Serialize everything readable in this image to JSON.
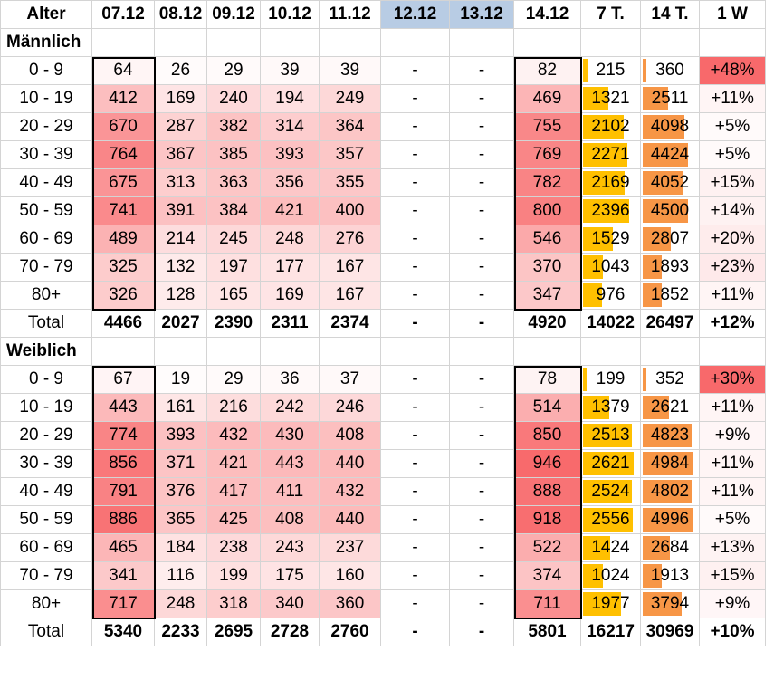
{
  "header": [
    "Alter",
    "07.12",
    "08.12",
    "09.12",
    "10.12",
    "11.12",
    "12.12",
    "13.12",
    "14.12",
    "7 T.",
    "14 T.",
    "1 W"
  ],
  "header_highlight_cols": [
    6,
    7
  ],
  "colors": {
    "heat_low": "#ffffff",
    "heat_high": "#f8696b",
    "bar_7d": "#ffc000",
    "bar_14d": "#f79646",
    "header_highlight": "#b8cce4",
    "change_hot": "#f8696b",
    "grid": "#d4d4d4",
    "frame": "#000000"
  },
  "heat_scale": {
    "min": 0,
    "max": 950
  },
  "bar_scale": {
    "max_7d": 2621,
    "max_14d": 4996
  },
  "sections": [
    {
      "title": "Männlich",
      "rows": [
        {
          "age": "0 - 9",
          "vals": [
            "64",
            "26",
            "29",
            "39",
            "39",
            "-",
            "-",
            "82"
          ],
          "d7": "215",
          "d14": "360",
          "w": "+48%",
          "w_hot": true
        },
        {
          "age": "10 - 19",
          "vals": [
            "412",
            "169",
            "240",
            "194",
            "249",
            "-",
            "-",
            "469"
          ],
          "d7": "1321",
          "d14": "2511",
          "w": "+11%"
        },
        {
          "age": "20 - 29",
          "vals": [
            "670",
            "287",
            "382",
            "314",
            "364",
            "-",
            "-",
            "755"
          ],
          "d7": "2102",
          "d14": "4098",
          "w": "+5%"
        },
        {
          "age": "30 - 39",
          "vals": [
            "764",
            "367",
            "385",
            "393",
            "357",
            "-",
            "-",
            "769"
          ],
          "d7": "2271",
          "d14": "4424",
          "w": "+5%"
        },
        {
          "age": "40 - 49",
          "vals": [
            "675",
            "313",
            "363",
            "356",
            "355",
            "-",
            "-",
            "782"
          ],
          "d7": "2169",
          "d14": "4052",
          "w": "+15%"
        },
        {
          "age": "50 - 59",
          "vals": [
            "741",
            "391",
            "384",
            "421",
            "400",
            "-",
            "-",
            "800"
          ],
          "d7": "2396",
          "d14": "4500",
          "w": "+14%"
        },
        {
          "age": "60 - 69",
          "vals": [
            "489",
            "214",
            "245",
            "248",
            "276",
            "-",
            "-",
            "546"
          ],
          "d7": "1529",
          "d14": "2807",
          "w": "+20%"
        },
        {
          "age": "70 - 79",
          "vals": [
            "325",
            "132",
            "197",
            "177",
            "167",
            "-",
            "-",
            "370"
          ],
          "d7": "1043",
          "d14": "1893",
          "w": "+23%"
        },
        {
          "age": "80+",
          "vals": [
            "326",
            "128",
            "165",
            "169",
            "167",
            "-",
            "-",
            "347"
          ],
          "d7": "976",
          "d14": "1852",
          "w": "+11%"
        }
      ],
      "total": {
        "label": "Total",
        "vals": [
          "4466",
          "2027",
          "2390",
          "2311",
          "2374",
          "-",
          "-",
          "4920"
        ],
        "d7": "14022",
        "d14": "26497",
        "w": "+12%"
      }
    },
    {
      "title": "Weiblich",
      "rows": [
        {
          "age": "0 - 9",
          "vals": [
            "67",
            "19",
            "29",
            "36",
            "37",
            "-",
            "-",
            "78"
          ],
          "d7": "199",
          "d14": "352",
          "w": "+30%",
          "w_hot": true
        },
        {
          "age": "10 - 19",
          "vals": [
            "443",
            "161",
            "216",
            "242",
            "246",
            "-",
            "-",
            "514"
          ],
          "d7": "1379",
          "d14": "2621",
          "w": "+11%"
        },
        {
          "age": "20 - 29",
          "vals": [
            "774",
            "393",
            "432",
            "430",
            "408",
            "-",
            "-",
            "850"
          ],
          "d7": "2513",
          "d14": "4823",
          "w": "+9%"
        },
        {
          "age": "30 - 39",
          "vals": [
            "856",
            "371",
            "421",
            "443",
            "440",
            "-",
            "-",
            "946"
          ],
          "d7": "2621",
          "d14": "4984",
          "w": "+11%"
        },
        {
          "age": "40 - 49",
          "vals": [
            "791",
            "376",
            "417",
            "411",
            "432",
            "-",
            "-",
            "888"
          ],
          "d7": "2524",
          "d14": "4802",
          "w": "+11%"
        },
        {
          "age": "50 - 59",
          "vals": [
            "886",
            "365",
            "425",
            "408",
            "440",
            "-",
            "-",
            "918"
          ],
          "d7": "2556",
          "d14": "4996",
          "w": "+5%"
        },
        {
          "age": "60 - 69",
          "vals": [
            "465",
            "184",
            "238",
            "243",
            "237",
            "-",
            "-",
            "522"
          ],
          "d7": "1424",
          "d14": "2684",
          "w": "+13%"
        },
        {
          "age": "70 - 79",
          "vals": [
            "341",
            "116",
            "199",
            "175",
            "160",
            "-",
            "-",
            "374"
          ],
          "d7": "1024",
          "d14": "1913",
          "w": "+15%"
        },
        {
          "age": "80+",
          "vals": [
            "717",
            "248",
            "318",
            "340",
            "360",
            "-",
            "-",
            "711"
          ],
          "d7": "1977",
          "d14": "3794",
          "w": "+9%"
        }
      ],
      "total": {
        "label": "Total",
        "vals": [
          "5340",
          "2233",
          "2695",
          "2728",
          "2760",
          "-",
          "-",
          "5801"
        ],
        "d7": "16217",
        "d14": "30969",
        "w": "+10%"
      }
    }
  ]
}
